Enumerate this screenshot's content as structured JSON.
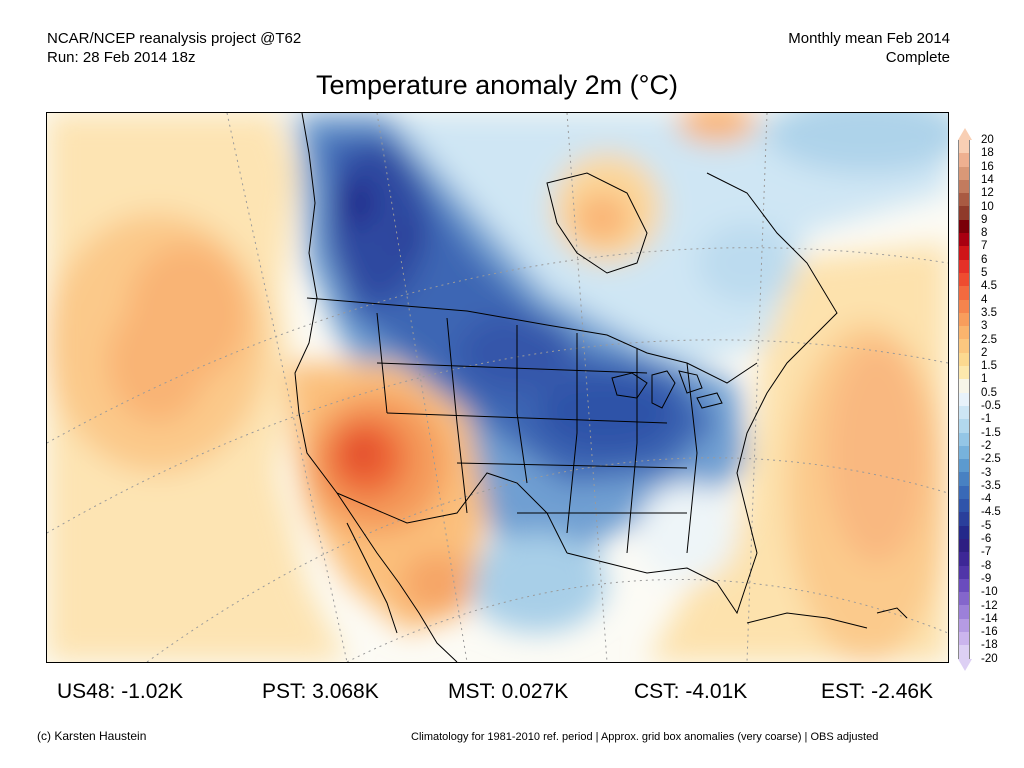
{
  "header": {
    "left_line1": "NCAR/NCEP reanalysis project @T62",
    "left_line2": "Run: 28 Feb 2014 18z",
    "right_line1": "Monthly mean Feb 2014",
    "right_line2": "Complete"
  },
  "title": "Temperature anomaly 2m (°C)",
  "map": {
    "region": "North America",
    "variable": "2m temperature anomaly",
    "units": "°C"
  },
  "colorbar": {
    "ticks": [
      "20",
      "18",
      "16",
      "14",
      "12",
      "10",
      "9",
      "8",
      "7",
      "6",
      "5",
      "4.5",
      "4",
      "3.5",
      "3",
      "2.5",
      "2",
      "1.5",
      "1",
      "0.5",
      "-0.5",
      "-1",
      "-1.5",
      "-2",
      "-2.5",
      "-3",
      "-3.5",
      "-4",
      "-4.5",
      "-5",
      "-6",
      "-7",
      "-8",
      "-9",
      "-10",
      "-12",
      "-14",
      "-16",
      "-18",
      "-20"
    ],
    "colors": [
      "#f8cfb4",
      "#eeb090",
      "#d99877",
      "#c27b5e",
      "#a95a42",
      "#8f3a2a",
      "#7a0008",
      "#a80010",
      "#cf1518",
      "#e53027",
      "#ee4c30",
      "#f36a3f",
      "#f5844d",
      "#f89d5c",
      "#fab46d",
      "#fbc77f",
      "#fcd990",
      "#fde8ad",
      "#f7f5e8",
      "#e8f2fa",
      "#cde6f5",
      "#b2d8ee",
      "#94c6e6",
      "#77b2dc",
      "#5c9acf",
      "#4881c2",
      "#3969b7",
      "#2f54aa",
      "#2a3f9b",
      "#24298a",
      "#2e1f82",
      "#3d2796",
      "#5035a8",
      "#6a4cbd",
      "#8466cc",
      "#9c80d9",
      "#b59be3",
      "#cbb5ed",
      "#ddd0f4"
    ],
    "triangle_top": "#f8cfb4",
    "triangle_bottom": "#ddd0f4"
  },
  "regional_means": [
    {
      "label": "US48: -1.02K"
    },
    {
      "label": "PST: 3.068K"
    },
    {
      "label": "MST: 0.027K"
    },
    {
      "label": "CST: -4.01K"
    },
    {
      "label": "EST: -2.46K"
    }
  ],
  "footer": {
    "left": "(c) Karsten Haustein",
    "right": "Climatology for 1981-2010 ref. period | Approx. grid box anomalies (very coarse) | OBS adjusted"
  }
}
